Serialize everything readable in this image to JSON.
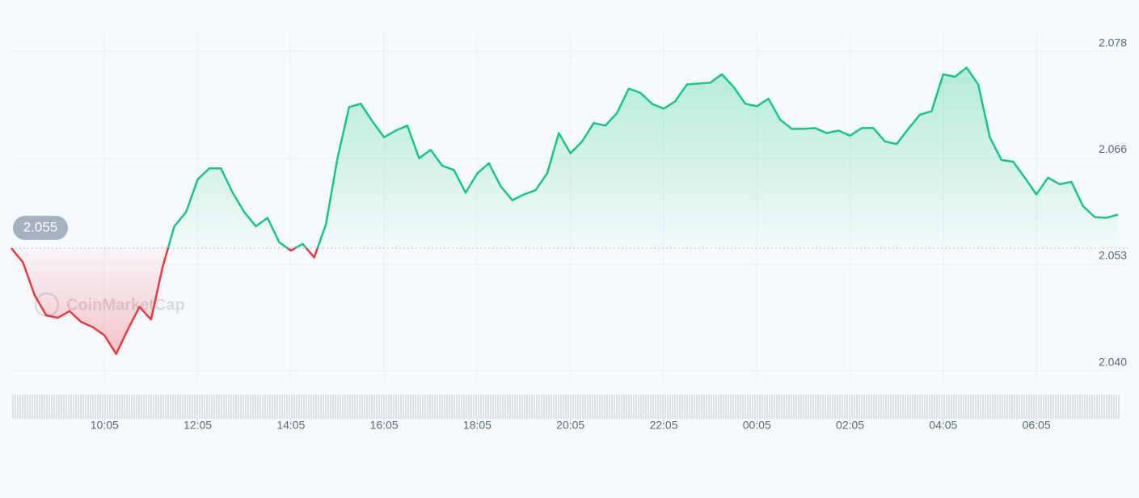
{
  "chart_data": {
    "type": "line",
    "watermark": "CoinMarketCap",
    "x": [
      0,
      15,
      30,
      45,
      60,
      75,
      90,
      105,
      120,
      135,
      150,
      165,
      180,
      195,
      210,
      225,
      240,
      255,
      270,
      285,
      300,
      315,
      330,
      345,
      360,
      375,
      390,
      405,
      420,
      435,
      450,
      465,
      480,
      495,
      510,
      525,
      540,
      555,
      570,
      585,
      600,
      615,
      630,
      645,
      660,
      675,
      690,
      705,
      720,
      735,
      750,
      765,
      780,
      795,
      810,
      825,
      840,
      855,
      870,
      885,
      900,
      915,
      930,
      945,
      960,
      975,
      990,
      1005,
      1020,
      1035,
      1050,
      1065,
      1080,
      1095,
      1110,
      1125,
      1140,
      1155,
      1170,
      1185,
      1200,
      1215,
      1230,
      1245,
      1260,
      1275,
      1290,
      1305,
      1320,
      1335,
      1350,
      1365,
      1380,
      1395,
      1410,
      1425
    ],
    "series": [
      {
        "values": [
          2.055,
          2.0533,
          2.0494,
          2.047,
          2.0467,
          2.0475,
          2.0462,
          2.0456,
          2.0446,
          2.0424,
          2.0453,
          2.048,
          2.0465,
          2.0528,
          2.0576,
          2.0593,
          2.0632,
          2.0645,
          2.0645,
          2.0616,
          2.0593,
          2.0576,
          2.0586,
          2.0557,
          2.0547,
          2.0555,
          2.0539,
          2.0578,
          2.0657,
          2.0718,
          2.0722,
          2.0701,
          2.0682,
          2.069,
          2.0696,
          2.0657,
          2.0667,
          2.0648,
          2.0643,
          2.0616,
          2.0639,
          2.0651,
          2.0624,
          2.0607,
          2.0614,
          2.0619,
          2.0639,
          2.0687,
          2.0663,
          2.0677,
          2.0699,
          2.0696,
          2.0711,
          2.074,
          2.0735,
          2.0722,
          2.0716,
          2.0725,
          2.0745,
          2.0746,
          2.0747,
          2.0757,
          2.0742,
          2.0722,
          2.0719,
          2.0728,
          2.0703,
          2.0692,
          2.0692,
          2.0693,
          2.0687,
          2.069,
          2.0684,
          2.0693,
          2.0693,
          2.0677,
          2.0674,
          2.0692,
          2.0709,
          2.0713,
          2.0757,
          2.0754,
          2.0765,
          2.0745,
          2.0682,
          2.0655,
          2.0653,
          2.0634,
          2.0614,
          2.0634,
          2.0626,
          2.0629,
          2.06,
          2.0587,
          2.0586,
          2.059
        ]
      }
    ],
    "baseline": 2.055,
    "up_color": "#16c784",
    "down_color": "#ea3943",
    "xlim": [
      0,
      1425
    ],
    "xticks": [
      {
        "value": 120,
        "label": "10:05"
      },
      {
        "value": 240,
        "label": "12:05"
      },
      {
        "value": 360,
        "label": "14:05"
      },
      {
        "value": 480,
        "label": "16:05"
      },
      {
        "value": 600,
        "label": "18:05"
      },
      {
        "value": 720,
        "label": "20:05"
      },
      {
        "value": 840,
        "label": "22:05"
      },
      {
        "value": 960,
        "label": "00:05"
      },
      {
        "value": 1080,
        "label": "02:05"
      },
      {
        "value": 1200,
        "label": "04:05"
      },
      {
        "value": 1320,
        "label": "06:05"
      }
    ],
    "ylim": [
      2.0393,
      2.0807
    ],
    "yticks": [
      {
        "value": 2.0404,
        "label": "2.040"
      },
      {
        "value": 2.05307,
        "label": "2.053"
      },
      {
        "value": 2.06573,
        "label": "2.066"
      },
      {
        "value": 2.0784,
        "label": "2.078"
      }
    ],
    "grid": true
  }
}
